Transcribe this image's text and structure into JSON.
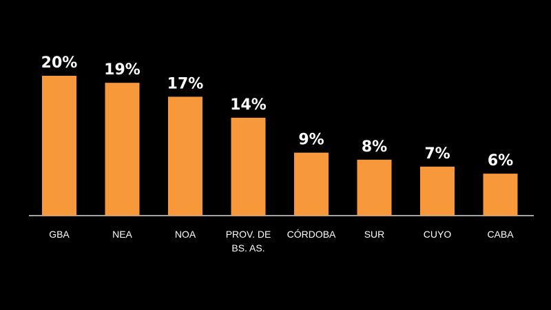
{
  "chart_data": {
    "type": "bar",
    "title": "",
    "xlabel": "",
    "ylabel": "",
    "ylim": [
      0,
      20
    ],
    "categories": [
      "GBA",
      "NEA",
      "NOA",
      "PROV. DE BS. AS.",
      "CÓRDOBA",
      "SUR",
      "CUYO",
      "CABA"
    ],
    "category_lines": [
      [
        "GBA"
      ],
      [
        "NEA"
      ],
      [
        "NOA"
      ],
      [
        "PROV. DE",
        "BS. AS."
      ],
      [
        "CÓRDOBA"
      ],
      [
        "SUR"
      ],
      [
        "CUYO"
      ],
      [
        "CABA"
      ]
    ],
    "values": [
      20,
      19,
      17,
      14,
      9,
      8,
      7,
      6
    ],
    "value_labels": [
      "20%",
      "19%",
      "17%",
      "14%",
      "9%",
      "8%",
      "7%",
      "6%"
    ],
    "grid": false,
    "legend": "none"
  },
  "colors": {
    "background": "#000000",
    "bar": "#F7993B",
    "axis": "#D9D9D9",
    "text": "#FFFFFF"
  }
}
